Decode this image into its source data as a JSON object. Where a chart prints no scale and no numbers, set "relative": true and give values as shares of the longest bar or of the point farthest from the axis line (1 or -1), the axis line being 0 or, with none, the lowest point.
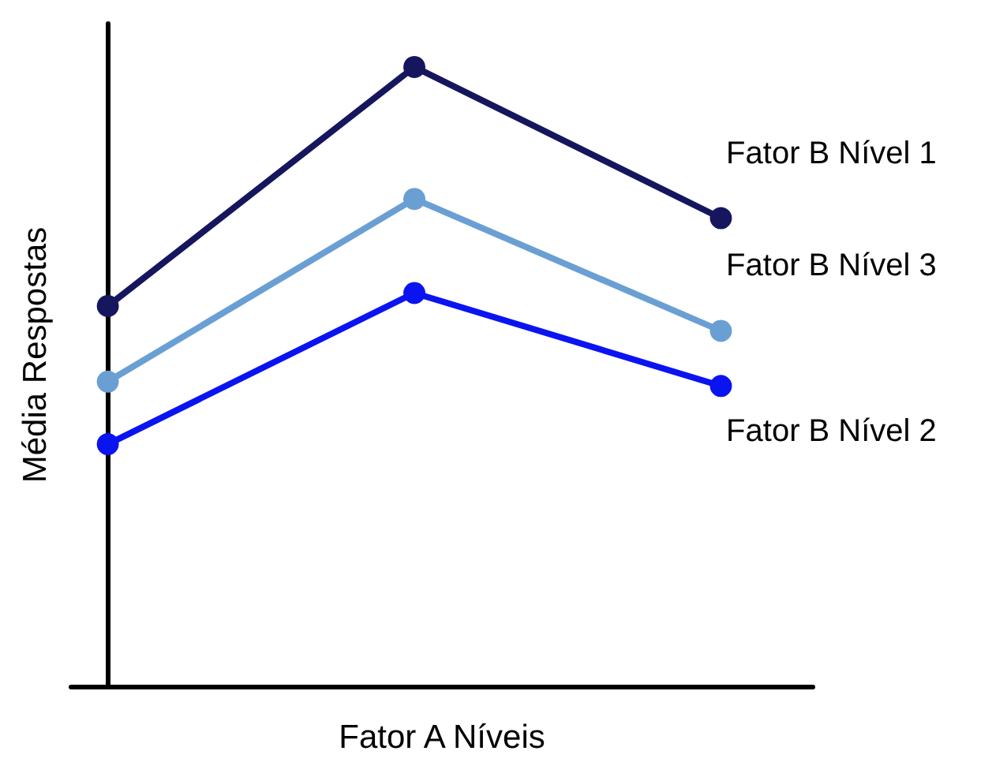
{
  "chart_data": {
    "type": "line",
    "relative": true,
    "xlabel": "Fator A Níveis",
    "ylabel": "Média Respostas",
    "categories": [
      null,
      null,
      null
    ],
    "marker": "circle",
    "line_style": "solid",
    "grid": false,
    "legend": false,
    "series": [
      {
        "name": "Fator B Nível 1",
        "color": "#16165e",
        "values": [
          0.614,
          1,
          0.756
        ]
      },
      {
        "name": "Fator B Nível 3",
        "color": "#6a9fd4",
        "values": [
          0.492,
          0.787,
          0.574
        ]
      },
      {
        "name": "Fator B Nível 2",
        "color": "#0a14f0",
        "values": [
          0.391,
          0.635,
          0.485
        ]
      }
    ]
  }
}
